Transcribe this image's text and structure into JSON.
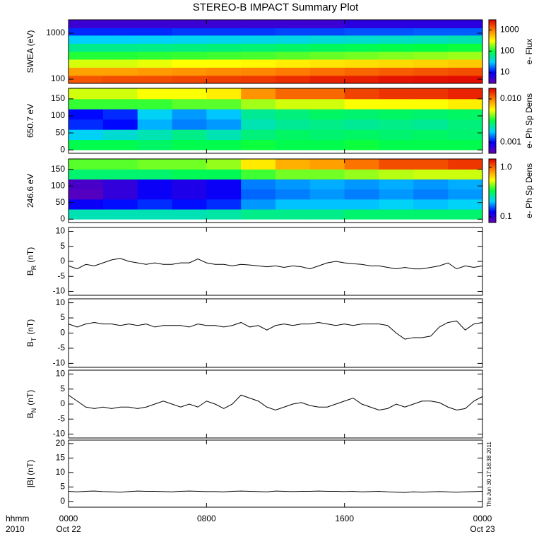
{
  "title": "STEREO-B IMPACT Summary Plot",
  "x_axis_labels": [
    "hhmm",
    "2010"
  ],
  "xlim": [
    0,
    24
  ],
  "xticks": [
    {
      "value": 0,
      "label": "0000"
    },
    {
      "value": 8,
      "label": "0800"
    },
    {
      "value": 16,
      "label": "1600"
    },
    {
      "value": 24,
      "label": "0000"
    }
  ],
  "xtick_dates": [
    "Oct 22",
    null,
    null,
    "Oct 23"
  ],
  "timestamp": "Thu Jun 30 17:58:38 2011",
  "colormap": [
    "#6a00b0",
    "#0000ff",
    "#00d0ff",
    "#00ff40",
    "#ffff00",
    "#ff8000",
    "#e00000"
  ],
  "chart_data": [
    {
      "type": "heatmap",
      "ylabel": "SWEA (eV)",
      "log_y": true,
      "ylim": [
        81,
        1960
      ],
      "yticks": [
        100,
        1000
      ],
      "x": [
        0,
        2,
        4,
        6,
        8,
        10,
        12,
        14,
        16,
        18,
        20,
        22,
        24
      ],
      "y": [
        81,
        120,
        180,
        270,
        400,
        600,
        900,
        1300,
        1960
      ],
      "values": [
        [
          1400,
          1500,
          1500,
          1600,
          1700,
          1800,
          2000,
          2200,
          2300,
          2500,
          2600,
          2700
        ],
        [
          700,
          700,
          750,
          800,
          850,
          900,
          1000,
          1100,
          1200,
          1300,
          1400,
          1500
        ],
        [
          250,
          250,
          270,
          300,
          300,
          320,
          350,
          380,
          400,
          420,
          450,
          480
        ],
        [
          110,
          110,
          115,
          120,
          125,
          130,
          140,
          150,
          160,
          170,
          180,
          190
        ],
        [
          60,
          60,
          62,
          65,
          68,
          70,
          75,
          80,
          85,
          90,
          95,
          100
        ],
        [
          30,
          30,
          31,
          32,
          33,
          34,
          35,
          38,
          40,
          42,
          45,
          48
        ],
        [
          12,
          12,
          12,
          13,
          13,
          13,
          14,
          14,
          15,
          15,
          16,
          16
        ],
        [
          5,
          5,
          5,
          5,
          5,
          5,
          5,
          5,
          6,
          6,
          6,
          6
        ]
      ],
      "clim": [
        3,
        3000
      ],
      "log_color": true,
      "cticks": [
        10,
        100,
        1000
      ],
      "colorbar_label": "e- Flux"
    },
    {
      "type": "heatmap",
      "ylabel": "650.7 eV",
      "log_y": false,
      "ylim": [
        -10,
        181
      ],
      "yticks": [
        0,
        50,
        100,
        150
      ],
      "x": [
        0,
        2,
        4,
        6,
        8,
        10,
        12,
        14,
        16,
        18,
        20,
        22,
        24
      ],
      "y": [
        0,
        30,
        60,
        90,
        120,
        150,
        180
      ],
      "values": [
        [
          0.003,
          0.003,
          0.0028,
          0.003,
          0.003,
          0.0032,
          0.003,
          0.003,
          0.0032,
          0.003,
          0.003,
          0.003
        ],
        [
          0.0018,
          0.002,
          0.0022,
          0.0025,
          0.0022,
          0.0026,
          0.0028,
          0.0027,
          0.0028,
          0.0027,
          0.0028,
          0.0027
        ],
        [
          0.0011,
          0.001,
          0.0016,
          0.0014,
          0.0015,
          0.0022,
          0.0024,
          0.0025,
          0.0024,
          0.0025,
          0.0024,
          0.0026
        ],
        [
          0.001,
          0.0011,
          0.0018,
          0.0015,
          0.0017,
          0.0024,
          0.0026,
          0.0028,
          0.0027,
          0.0028,
          0.0027,
          0.0028
        ],
        [
          0.0035,
          0.0035,
          0.0035,
          0.0038,
          0.0038,
          0.0045,
          0.005,
          0.005,
          0.0055,
          0.0055,
          0.0055,
          0.006
        ],
        [
          0.005,
          0.005,
          0.0055,
          0.0055,
          0.006,
          0.009,
          0.011,
          0.011,
          0.013,
          0.014,
          0.014,
          0.015
        ]
      ],
      "clim": [
        0.00055,
        0.0176
      ],
      "log_color": true,
      "cticks": [
        0.001,
        {
          "value": 0.01,
          "label": "0.010"
        }
      ],
      "colorbar_label": "e- Ph Sp Dens"
    },
    {
      "type": "heatmap",
      "ylabel": "246.6 eV",
      "log_y": false,
      "ylim": [
        -10,
        181
      ],
      "yticks": [
        0,
        50,
        100,
        150
      ],
      "x": [
        0,
        2,
        4,
        6,
        8,
        10,
        12,
        14,
        16,
        18,
        20,
        22,
        24
      ],
      "y": [
        0,
        30,
        60,
        90,
        120,
        150,
        180
      ],
      "values": [
        [
          0.25,
          0.25,
          0.25,
          0.25,
          0.26,
          0.28,
          0.28,
          0.28,
          0.3,
          0.3,
          0.3,
          0.3
        ],
        [
          0.12,
          0.13,
          0.14,
          0.13,
          0.14,
          0.18,
          0.2,
          0.2,
          0.2,
          0.21,
          0.2,
          0.21
        ],
        [
          0.085,
          0.1,
          0.12,
          0.11,
          0.12,
          0.16,
          0.17,
          0.18,
          0.17,
          0.18,
          0.17,
          0.18
        ],
        [
          0.09,
          0.1,
          0.12,
          0.11,
          0.12,
          0.17,
          0.18,
          0.19,
          0.18,
          0.19,
          0.18,
          0.19
        ],
        [
          0.3,
          0.3,
          0.3,
          0.32,
          0.32,
          0.38,
          0.42,
          0.42,
          0.45,
          0.48,
          0.5,
          0.5
        ],
        [
          0.4,
          0.4,
          0.42,
          0.42,
          0.45,
          0.6,
          0.75,
          0.8,
          0.95,
          1.1,
          1.1,
          1.2
        ]
      ],
      "clim": [
        0.077,
        1.48
      ],
      "log_color": true,
      "cticks": [
        {
          "value": 1,
          "label": "1.0"
        },
        0.1
      ],
      "colorbar_label": "e- Ph Sp Dens"
    },
    {
      "type": "line",
      "ylabel": "B",
      "ylabel_sub": "R",
      "ylabel_unit": "(nT)",
      "ylim": [
        -11.3,
        11.3
      ],
      "yticks": [
        -10,
        -5,
        0,
        5,
        10
      ],
      "color": "#000000",
      "x": [
        0,
        0.5,
        1,
        1.5,
        2,
        2.5,
        3,
        3.5,
        4,
        4.5,
        5,
        5.5,
        6,
        6.5,
        7,
        7.5,
        8,
        8.5,
        9,
        9.5,
        10,
        10.5,
        11,
        11.5,
        12,
        12.5,
        13,
        13.5,
        14,
        14.5,
        15,
        15.5,
        16,
        16.5,
        17,
        17.5,
        18,
        18.5,
        19,
        19.5,
        20,
        20.5,
        21,
        21.5,
        22,
        22.5,
        23,
        23.5,
        24
      ],
      "values": [
        -1.5,
        -2.5,
        -1,
        -1.5,
        -0.5,
        0.5,
        1,
        0,
        -0.5,
        -1,
        -0.5,
        -1,
        -1,
        -0.5,
        -0.5,
        0.8,
        -0.5,
        -1,
        -1,
        -1.5,
        -1,
        -1.2,
        -1.5,
        -1.8,
        -1.5,
        -2,
        -1.5,
        -1.8,
        -2.5,
        -1.5,
        -0.5,
        0,
        -0.5,
        -0.8,
        -1,
        -1.5,
        -1.5,
        -2,
        -2.5,
        -2,
        -2.5,
        -2.5,
        -2,
        -1.5,
        -0.5,
        -2.5,
        -1.5,
        -2,
        -1.5
      ]
    },
    {
      "type": "line",
      "ylabel": "B",
      "ylabel_sub": "T",
      "ylabel_unit": "(nT)",
      "ylim": [
        -11.3,
        11.3
      ],
      "yticks": [
        -10,
        -5,
        0,
        5,
        10
      ],
      "color": "#000000",
      "x": [
        0,
        0.5,
        1,
        1.5,
        2,
        2.5,
        3,
        3.5,
        4,
        4.5,
        5,
        5.5,
        6,
        6.5,
        7,
        7.5,
        8,
        8.5,
        9,
        9.5,
        10,
        10.5,
        11,
        11.5,
        12,
        12.5,
        13,
        13.5,
        14,
        14.5,
        15,
        15.5,
        16,
        16.5,
        17,
        17.5,
        18,
        18.5,
        19,
        19.5,
        20,
        20.5,
        21,
        21.5,
        22,
        22.5,
        23,
        23.5,
        24
      ],
      "values": [
        3,
        2,
        3,
        3.5,
        3,
        3,
        2.5,
        3,
        2.5,
        3,
        2,
        2.5,
        2.5,
        2.5,
        2,
        3,
        2.5,
        2.5,
        2,
        2.5,
        3.5,
        2,
        2.5,
        1,
        2.5,
        3,
        2.5,
        3,
        3,
        3.5,
        3,
        2.5,
        3,
        2.5,
        3,
        3,
        3,
        2.5,
        0,
        -2,
        -1.5,
        -1.5,
        -1,
        2,
        3.5,
        4,
        1,
        3,
        3.5
      ]
    },
    {
      "type": "line",
      "ylabel": "B",
      "ylabel_sub": "N",
      "ylabel_unit": "(nT)",
      "ylim": [
        -11.3,
        11.3
      ],
      "yticks": [
        -10,
        -5,
        0,
        5,
        10
      ],
      "color": "#000000",
      "x": [
        0,
        0.5,
        1,
        1.5,
        2,
        2.5,
        3,
        3.5,
        4,
        4.5,
        5,
        5.5,
        6,
        6.5,
        7,
        7.5,
        8,
        8.5,
        9,
        9.5,
        10,
        10.5,
        11,
        11.5,
        12,
        12.5,
        13,
        13.5,
        14,
        14.5,
        15,
        15.5,
        16,
        16.5,
        17,
        17.5,
        18,
        18.5,
        19,
        19.5,
        20,
        20.5,
        21,
        21.5,
        22,
        22.5,
        23,
        23.5,
        24
      ],
      "values": [
        3,
        1,
        -1,
        -1.5,
        -1,
        -1.5,
        -1,
        -1,
        -1.5,
        -1,
        0,
        1,
        0,
        -1,
        0,
        -1,
        1,
        0,
        -1.5,
        0,
        3,
        2,
        1,
        -1,
        -2,
        -1,
        0,
        0.5,
        -0.5,
        -1,
        -1,
        0,
        1,
        2,
        0,
        -1,
        -2,
        -1.5,
        0,
        -1,
        0,
        1,
        1,
        0.5,
        -1,
        -2,
        -1.5,
        1,
        2.5
      ]
    },
    {
      "type": "line",
      "ylabel": "|B| (nT)",
      "ylim": [
        -2,
        21.2
      ],
      "yticks": [
        0,
        5,
        10,
        15,
        20
      ],
      "color": "#000000",
      "x": [
        0,
        0.5,
        1,
        1.5,
        2,
        2.5,
        3,
        3.5,
        4,
        4.5,
        5,
        5.5,
        6,
        6.5,
        7,
        7.5,
        8,
        8.5,
        9,
        9.5,
        10,
        10.5,
        11,
        11.5,
        12,
        12.5,
        13,
        13.5,
        14,
        14.5,
        15,
        15.5,
        16,
        16.5,
        17,
        17.5,
        18,
        18.5,
        19,
        19.5,
        20,
        20.5,
        21,
        21.5,
        22,
        22.5,
        23,
        23.5,
        24
      ],
      "values": [
        3.5,
        3.3,
        3.5,
        3.6,
        3.4,
        3.3,
        3.2,
        3.4,
        3.6,
        3.5,
        3.5,
        3.4,
        3.3,
        3.5,
        3.6,
        3.5,
        3.4,
        3.4,
        3.3,
        3.5,
        3.6,
        3.5,
        3.4,
        3.3,
        3.6,
        3.5,
        3.4,
        3.5,
        3.5,
        3.6,
        3.5,
        3.5,
        3.4,
        3.5,
        3.3,
        3.4,
        3.5,
        3.3,
        3.2,
        3.1,
        3.3,
        3.2,
        3.3,
        3.4,
        3.3,
        3.2,
        3.3,
        3.4,
        3.5
      ]
    }
  ]
}
